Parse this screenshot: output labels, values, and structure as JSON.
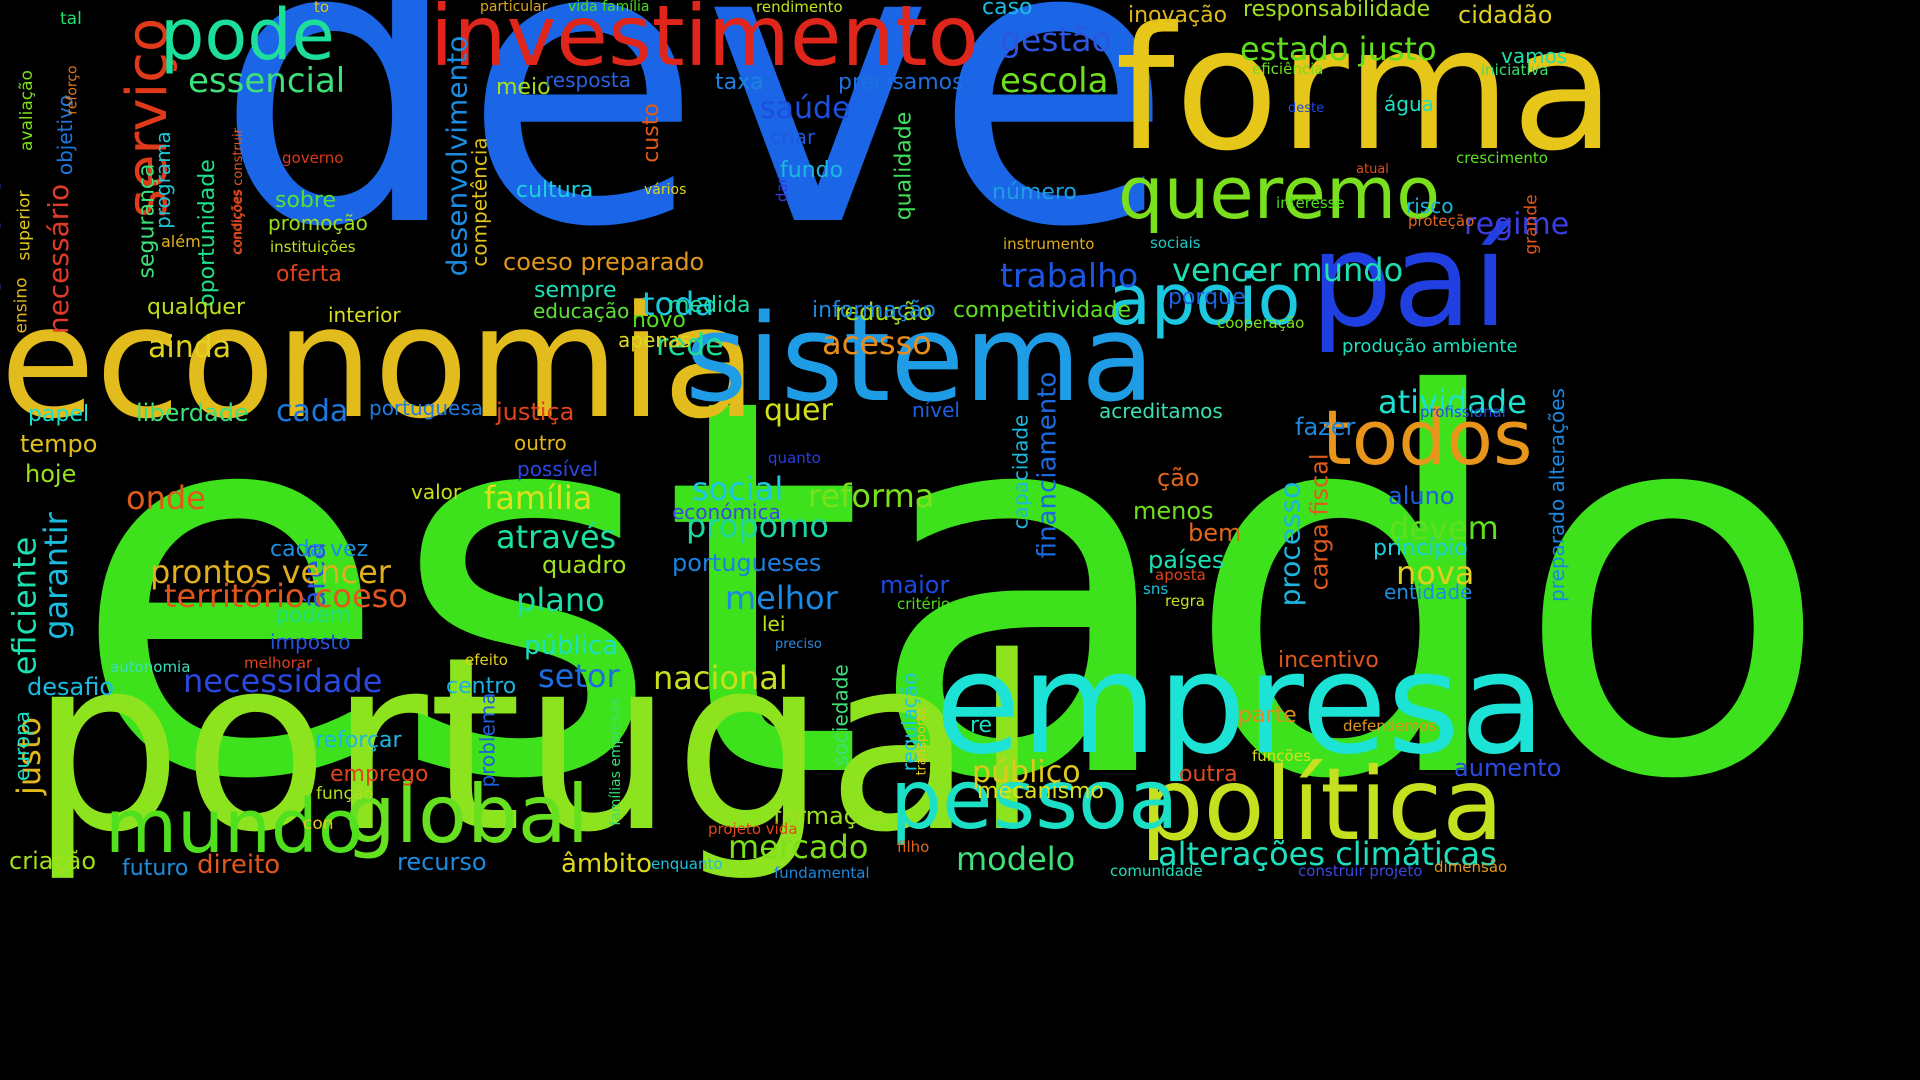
{
  "background_color": "#000000",
  "words": [
    {
      "text": "estado",
      "color": "#3de21c"
    },
    {
      "text": "deve",
      "color": "#1a66e6"
    },
    {
      "text": "portugal",
      "color": "#8ee31f"
    },
    {
      "text": "forma",
      "color": "#e6c619"
    },
    {
      "text": "economia",
      "color": "#e2bb1d"
    },
    {
      "text": "sistema",
      "color": "#1f9ce6"
    },
    {
      "text": "empresa",
      "color": "#1ce3d6"
    },
    {
      "text": "paí",
      "color": "#1f3fe0"
    },
    {
      "text": "investimento",
      "color": "#e0261a"
    },
    {
      "text": "política",
      "color": "#c5e01f"
    },
    {
      "text": "pessoa",
      "color": "#1ce0c6"
    },
    {
      "text": "global",
      "color": "#66e01f"
    },
    {
      "text": "mundo",
      "color": "#50e01d"
    },
    {
      "text": "todos",
      "color": "#e8951c"
    },
    {
      "text": "queremo",
      "color": "#7ae01d"
    },
    {
      "text": "apoio",
      "color": "#1cc8e0"
    },
    {
      "text": "serviço",
      "color": "#e03a1a"
    },
    {
      "text": "pode",
      "color": "#1ce09a"
    },
    {
      "text": "essencial",
      "color": "#3ee07a"
    },
    {
      "text": "escola",
      "color": "#6de01d"
    },
    {
      "text": "gestão",
      "color": "#2c56e0"
    },
    {
      "text": "estado justo",
      "color": "#5ee01c"
    },
    {
      "text": "trabalho",
      "color": "#1c56e0"
    },
    {
      "text": "vencer mundo",
      "color": "#1ce0b0"
    },
    {
      "text": "regime",
      "color": "#3a3ee0"
    },
    {
      "text": "atividade",
      "color": "#1ce0d0"
    },
    {
      "text": "território",
      "color": "#2a48e0"
    },
    {
      "text": "necessário",
      "color": "#e03a2a"
    },
    {
      "text": "desenvolvimento",
      "color": "#1c8ce0"
    },
    {
      "text": "competência",
      "color": "#e0c21c"
    },
    {
      "text": "área",
      "color": "#2a52e0"
    },
    {
      "text": "acesso",
      "color": "#e88c1c"
    },
    {
      "text": "redução",
      "color": "#a4e01c"
    },
    {
      "text": "toda",
      "color": "#1cc6e0"
    },
    {
      "text": "rede",
      "color": "#1ce096"
    },
    {
      "text": "ainda",
      "color": "#e0d21c"
    },
    {
      "text": "saúde",
      "color": "#1c4ee0"
    },
    {
      "text": "taxa",
      "color": "#1c84e0"
    },
    {
      "text": "precisamos",
      "color": "#1c70e0"
    },
    {
      "text": "meio",
      "color": "#a4e01c"
    },
    {
      "text": "resposta",
      "color": "#2c60e0"
    },
    {
      "text": "custo",
      "color": "#e05a1c"
    },
    {
      "text": "cultura",
      "color": "#1cd0e0"
    },
    {
      "text": "fundo",
      "color": "#1cb8e0"
    },
    {
      "text": "criar",
      "color": "#1c5ae0"
    },
    {
      "text": "qualidade",
      "color": "#3ee05a"
    },
    {
      "text": "número",
      "color": "#1c9ee0"
    },
    {
      "text": "coeso preparado",
      "color": "#e0961c"
    },
    {
      "text": "sempre",
      "color": "#1ce0b6"
    },
    {
      "text": "sobre",
      "color": "#50e03a"
    },
    {
      "text": "promoção",
      "color": "#9ae01c"
    },
    {
      "text": "instituições",
      "color": "#c2e01c"
    },
    {
      "text": "oferta",
      "color": "#e0421c"
    },
    {
      "text": "governo",
      "color": "#e0381c"
    },
    {
      "text": "vários",
      "color": "#e0d21c"
    },
    {
      "text": "segurança",
      "color": "#3ee07a"
    },
    {
      "text": "oportunidade",
      "color": "#1ce08a"
    },
    {
      "text": "programa",
      "color": "#1cc8d6"
    },
    {
      "text": "objetivo",
      "color": "#1c78e0"
    },
    {
      "text": "avaliação",
      "color": "#7ae01c"
    },
    {
      "text": "superior",
      "color": "#e0c81c"
    },
    {
      "text": "ensino",
      "color": "#e0b21c"
    },
    {
      "text": "reforço",
      "color": "#e07a1c"
    },
    {
      "text": "tal",
      "color": "#1ce06c"
    },
    {
      "text": "to",
      "color": "#e0c81c"
    },
    {
      "text": "particular",
      "color": "#e0a61c"
    },
    {
      "text": "vida família",
      "color": "#46e01c"
    },
    {
      "text": "rendimento",
      "color": "#c6e01c"
    },
    {
      "text": "caso",
      "color": "#1cbce0"
    },
    {
      "text": "inovação",
      "color": "#e0b81c"
    },
    {
      "text": "responsabilidade",
      "color": "#a2e01c"
    },
    {
      "text": "cidadão",
      "color": "#e0d01c"
    },
    {
      "text": "eficiência",
      "color": "#6ee01c"
    },
    {
      "text": "vamos",
      "color": "#1ce0a8"
    },
    {
      "text": "iniciativa",
      "color": "#3ae06e"
    },
    {
      "text": "água",
      "color": "#1ce0c4"
    },
    {
      "text": "deste",
      "color": "#1c48e0"
    },
    {
      "text": "atual",
      "color": "#e04e1c"
    },
    {
      "text": "crescimento",
      "color": "#5ee01c"
    },
    {
      "text": "interesse",
      "color": "#4ee01c"
    },
    {
      "text": "risco",
      "color": "#1cb4e0"
    },
    {
      "text": "proteção",
      "color": "#e0661c"
    },
    {
      "text": "grande",
      "color": "#e0561c"
    },
    {
      "text": "instrumento",
      "color": "#e0aa1c"
    },
    {
      "text": "sociais",
      "color": "#1cc8c8"
    },
    {
      "text": "porque",
      "color": "#1c64e0"
    },
    {
      "text": "cooperação",
      "color": "#7ae01c"
    },
    {
      "text": "produção ambiente",
      "color": "#1ce0be"
    },
    {
      "text": "profissional",
      "color": "#2a4ae0"
    },
    {
      "text": "preparado alterações",
      "color": "#1c88e0"
    },
    {
      "text": "informação",
      "color": "#1c88e0"
    },
    {
      "text": "competitividade",
      "color": "#5ee01c"
    },
    {
      "text": "medida",
      "color": "#1ce0a6"
    },
    {
      "text": "educação",
      "color": "#5ee03a"
    },
    {
      "text": "novo",
      "color": "#52e01c"
    },
    {
      "text": "apenas",
      "color": "#e0d81c"
    },
    {
      "text": "interior",
      "color": "#d6e01c"
    },
    {
      "text": "qualquer",
      "color": "#bde01c"
    },
    {
      "text": "dar",
      "color": "#2c3ee0"
    },
    {
      "text": "condições construir",
      "color": "#e0561c"
    },
    {
      "text": "condições",
      "color": "#e0421c"
    },
    {
      "text": "além",
      "color": "#e0b21c"
    },
    {
      "text": "papel",
      "color": "#1ce0ce"
    },
    {
      "text": "liberdade",
      "color": "#3ee07a"
    },
    {
      "text": "cada",
      "color": "#1c78e0"
    },
    {
      "text": "portuguesa",
      "color": "#1c7ce0"
    },
    {
      "text": "justiça",
      "color": "#e0421c"
    },
    {
      "text": "quer",
      "color": "#d2e01c"
    },
    {
      "text": "nível",
      "color": "#1c62e0"
    },
    {
      "text": "acreditamos",
      "color": "#3ae0b2"
    },
    {
      "text": "fazer",
      "color": "#1c88e0"
    },
    {
      "text": "tempo",
      "color": "#e0c01c"
    },
    {
      "text": "outro",
      "color": "#e0b81c"
    },
    {
      "text": "quanto",
      "color": "#2a3ee0"
    },
    {
      "text": "possível",
      "color": "#2a48e0"
    },
    {
      "text": "hoje",
      "color": "#9ae01c"
    },
    {
      "text": "onde",
      "color": "#e05a1c"
    },
    {
      "text": "valor",
      "color": "#c8e01c"
    },
    {
      "text": "família",
      "color": "#dde01c"
    },
    {
      "text": "social",
      "color": "#1cc8e0"
    },
    {
      "text": "reforma",
      "color": "#7ae01c"
    },
    {
      "text": "capacidade",
      "color": "#1cb8e0"
    },
    {
      "text": "financiamento",
      "color": "#1c6ae0"
    },
    {
      "text": "ção",
      "color": "#e0661c"
    },
    {
      "text": "menos",
      "color": "#6ee01c"
    },
    {
      "text": "bem",
      "color": "#e0661c"
    },
    {
      "text": "processo",
      "color": "#1cb4e0"
    },
    {
      "text": "carga fiscal",
      "color": "#e05a1c"
    },
    {
      "text": "aluno",
      "color": "#1c60e0"
    },
    {
      "text": "devem",
      "color": "#5ee01c"
    },
    {
      "text": "princípio",
      "color": "#1cd0e0"
    },
    {
      "text": "nova",
      "color": "#e0d01c"
    },
    {
      "text": "entidade",
      "color": "#1c8ee0"
    },
    {
      "text": "países",
      "color": "#1ce0b4"
    },
    {
      "text": "aposta",
      "color": "#e0421c"
    },
    {
      "text": "sns",
      "color": "#1cc0e0"
    },
    {
      "text": "regra",
      "color": "#c8e01c"
    },
    {
      "text": "económica",
      "color": "#3a48e0"
    },
    {
      "text": "através",
      "color": "#1ce09e"
    },
    {
      "text": "propomo",
      "color": "#1cd6a0"
    },
    {
      "text": "portugueses",
      "color": "#1c80e0"
    },
    {
      "text": "quadro",
      "color": "#a2e01c"
    },
    {
      "text": "maior",
      "color": "#1c48e0"
    },
    {
      "text": "critério",
      "color": "#4ee01c"
    },
    {
      "text": "melhor",
      "color": "#1c88e0"
    },
    {
      "text": "lei",
      "color": "#c0e01c"
    },
    {
      "text": "preciso",
      "color": "#2c8ce0"
    },
    {
      "text": "plano",
      "color": "#1ce0a6"
    },
    {
      "text": "prontos vencer",
      "color": "#e0b01c"
    },
    {
      "text": "território coeso",
      "color": "#e0561c"
    },
    {
      "text": "garantir",
      "color": "#1cbce0"
    },
    {
      "text": "eficiente",
      "color": "#1ce0b0"
    },
    {
      "text": "cada vez",
      "color": "#1c8ee0"
    },
    {
      "text": "podem",
      "color": "#1ce076"
    },
    {
      "text": "imposto",
      "color": "#2a52e0"
    },
    {
      "text": "pública",
      "color": "#1ce0be"
    },
    {
      "text": "setor",
      "color": "#1c6ee0"
    },
    {
      "text": "nacional",
      "color": "#c8e01c"
    },
    {
      "text": "incentivo",
      "color": "#e0561c"
    },
    {
      "text": "efeito",
      "color": "#e0d01c"
    },
    {
      "text": "centro",
      "color": "#1cb0e0"
    },
    {
      "text": "necessidade",
      "color": "#2a48e0"
    },
    {
      "text": "desafio",
      "color": "#1cbae0"
    },
    {
      "text": "autonomia",
      "color": "#3ae0be"
    },
    {
      "text": "melhorar",
      "color": "#e0421c"
    },
    {
      "text": "justo",
      "color": "#e0b81c"
    },
    {
      "text": "europa",
      "color": "#1ce0c6"
    },
    {
      "text": "famílias empresas",
      "color": "#3ae06e"
    },
    {
      "text": "problema",
      "color": "#1c60e0"
    },
    {
      "text": "sociedade",
      "color": "#3ee07a"
    },
    {
      "text": "regulação",
      "color": "#1cc8e0"
    },
    {
      "text": "transporte",
      "color": "#e0c81c"
    },
    {
      "text": "re",
      "color": "#1ce0c4"
    },
    {
      "text": "parte",
      "color": "#e08c1c"
    },
    {
      "text": "defendemos",
      "color": "#e0961c"
    },
    {
      "text": "funções",
      "color": "#d6e01c"
    },
    {
      "text": "aumento",
      "color": "#2a4ae0"
    },
    {
      "text": "outra",
      "color": "#e04a1c"
    },
    {
      "text": "público",
      "color": "#e0c81c"
    },
    {
      "text": "mecanismo",
      "color": "#dde01c"
    },
    {
      "text": "reforçar",
      "color": "#1cb8e0"
    },
    {
      "text": "emprego",
      "color": "#e0421c"
    },
    {
      "text": "função",
      "color": "#b0e01c"
    },
    {
      "text": "con",
      "color": "#e0c81c"
    },
    {
      "text": "formação",
      "color": "#9ae01c"
    },
    {
      "text": "projeto vida",
      "color": "#e04a1c"
    },
    {
      "text": "filho",
      "color": "#e0661c"
    },
    {
      "text": "mercado",
      "color": "#7ae01c"
    },
    {
      "text": "modelo",
      "color": "#3ee07a"
    },
    {
      "text": "alterações climáticas",
      "color": "#1ce0be"
    },
    {
      "text": "criação",
      "color": "#a2e01c"
    },
    {
      "text": "futuro",
      "color": "#1c8ee0"
    },
    {
      "text": "direito",
      "color": "#e0561c"
    },
    {
      "text": "recurso",
      "color": "#1c8ce0"
    },
    {
      "text": "âmbito",
      "color": "#e0d81c"
    },
    {
      "text": "enquanto",
      "color": "#1cc0e0"
    },
    {
      "text": "fundamental",
      "color": "#1c88e0"
    },
    {
      "text": "comunidade",
      "color": "#1ce0be"
    },
    {
      "text": "construir projeto",
      "color": "#3a48e0"
    },
    {
      "text": "dimensão",
      "color": "#e0961c"
    }
  ]
}
